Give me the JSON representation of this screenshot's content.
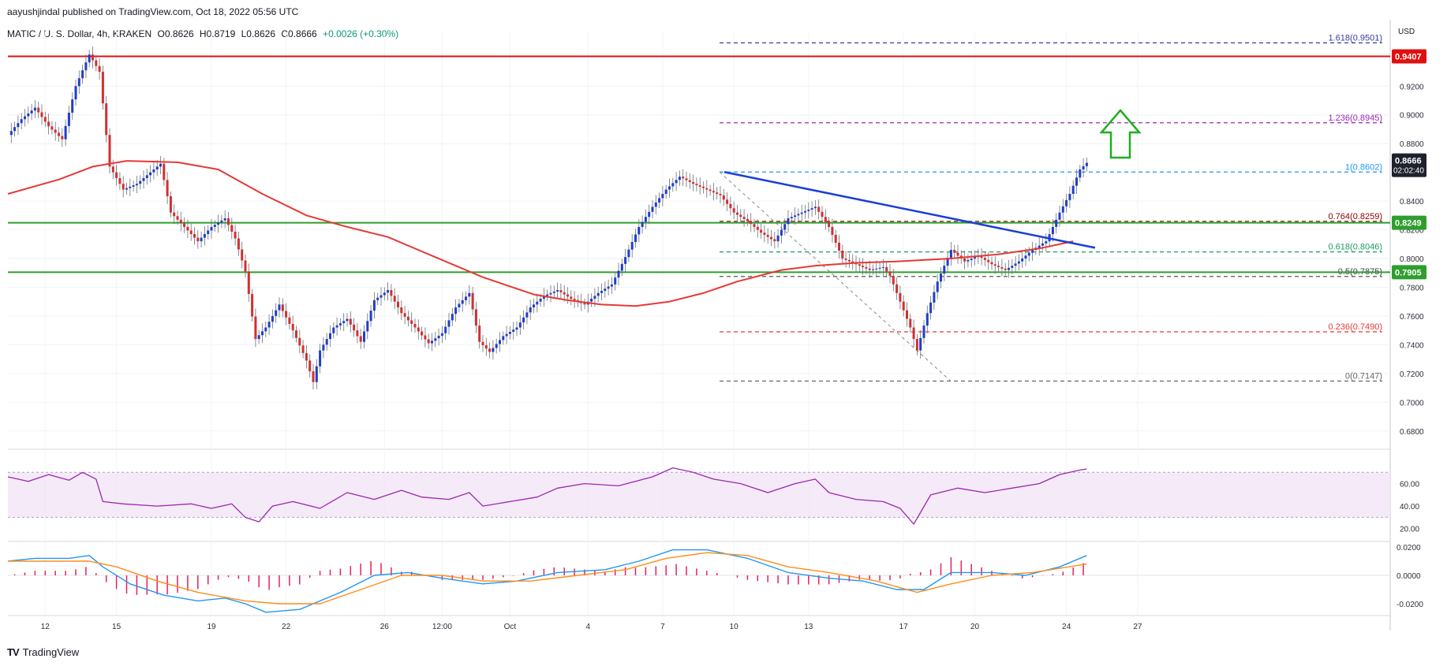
{
  "header": {
    "publisher": "aayushjindal published on TradingView.com, Oct 18, 2022 05:56 UTC",
    "symbol": "MATIC / U. S. Dollar, 4h, KRAKEN",
    "open": "O0.8626",
    "high": "H0.8719",
    "low": "L0.8626",
    "close": "C0.8666",
    "change": "+0.0026 (+0.30%)"
  },
  "brand": {
    "logo_icon": "tradingview-logo-icon",
    "label": "TradingView"
  },
  "colors": {
    "up": "#1f3ec8",
    "down": "#d32f2f",
    "ma": "#e53935",
    "trendline": "#1a3fd6",
    "support": "#2e9e2e",
    "resistance": "#e01010",
    "fib": "#5a5a9a",
    "rsi": "#9c27b0",
    "macd": "#2196f3",
    "signal": "#ff8c1a",
    "hist": "#e91e63",
    "arrow": "#1db01d"
  },
  "chart_data": [
    {
      "type": "candlestick",
      "title": "MATIC / U. S. Dollar, 4h, KRAKEN",
      "ylabel": "USD",
      "ylim": [
        0.67,
        0.958
      ],
      "y_ticks": [
        "0.9200",
        "0.9000",
        "0.8800",
        "0.8400",
        "0.8200",
        "0.8000",
        "0.7800",
        "0.7600",
        "0.7400",
        "0.7200",
        "0.7000",
        "0.6800"
      ],
      "x_ticks": [
        "12",
        "15",
        "19",
        "22",
        "26",
        "12:00",
        "Oct",
        "4",
        "7",
        "10",
        "13",
        "17",
        "20",
        "24",
        "27"
      ],
      "price_path": [
        [
          0,
          0.886
        ],
        [
          4,
          0.897
        ],
        [
          8,
          0.905
        ],
        [
          12,
          0.892
        ],
        [
          16,
          0.883
        ],
        [
          20,
          0.92
        ],
        [
          24,
          0.942
        ],
        [
          27,
          0.93
        ],
        [
          30,
          0.864
        ],
        [
          34,
          0.848
        ],
        [
          38,
          0.852
        ],
        [
          42,
          0.86
        ],
        [
          45,
          0.866
        ],
        [
          48,
          0.832
        ],
        [
          52,
          0.822
        ],
        [
          56,
          0.812
        ],
        [
          60,
          0.822
        ],
        [
          64,
          0.828
        ],
        [
          67,
          0.814
        ],
        [
          70,
          0.791
        ],
        [
          73,
          0.744
        ],
        [
          76,
          0.752
        ],
        [
          80,
          0.768
        ],
        [
          84,
          0.75
        ],
        [
          88,
          0.729
        ],
        [
          90,
          0.714
        ],
        [
          92,
          0.736
        ],
        [
          96,
          0.752
        ],
        [
          100,
          0.758
        ],
        [
          104,
          0.742
        ],
        [
          108,
          0.771
        ],
        [
          112,
          0.778
        ],
        [
          116,
          0.762
        ],
        [
          120,
          0.752
        ],
        [
          124,
          0.741
        ],
        [
          128,
          0.748
        ],
        [
          132,
          0.766
        ],
        [
          136,
          0.776
        ],
        [
          139,
          0.742
        ],
        [
          142,
          0.735
        ],
        [
          146,
          0.746
        ],
        [
          150,
          0.752
        ],
        [
          154,
          0.766
        ],
        [
          158,
          0.774
        ],
        [
          162,
          0.778
        ],
        [
          166,
          0.772
        ],
        [
          170,
          0.768
        ],
        [
          174,
          0.776
        ],
        [
          178,
          0.782
        ],
        [
          182,
          0.801
        ],
        [
          186,
          0.822
        ],
        [
          190,
          0.836
        ],
        [
          194,
          0.848
        ],
        [
          198,
          0.857
        ],
        [
          202,
          0.852
        ],
        [
          206,
          0.848
        ],
        [
          210,
          0.844
        ],
        [
          214,
          0.832
        ],
        [
          218,
          0.826
        ],
        [
          222,
          0.818
        ],
        [
          226,
          0.812
        ],
        [
          230,
          0.828
        ],
        [
          234,
          0.832
        ],
        [
          238,
          0.836
        ],
        [
          242,
          0.822
        ],
        [
          246,
          0.8
        ],
        [
          250,
          0.796
        ],
        [
          254,
          0.792
        ],
        [
          258,
          0.794
        ],
        [
          260,
          0.788
        ],
        [
          263,
          0.77
        ],
        [
          266,
          0.752
        ],
        [
          268,
          0.736
        ],
        [
          271,
          0.762
        ],
        [
          274,
          0.784
        ],
        [
          278,
          0.806
        ],
        [
          282,
          0.798
        ],
        [
          286,
          0.802
        ],
        [
          290,
          0.796
        ],
        [
          294,
          0.792
        ],
        [
          298,
          0.798
        ],
        [
          302,
          0.806
        ],
        [
          306,
          0.812
        ],
        [
          310,
          0.832
        ],
        [
          313,
          0.845
        ],
        [
          316,
          0.862
        ],
        [
          318,
          0.8666
        ]
      ],
      "moving_average": [
        [
          0,
          0.845
        ],
        [
          15,
          0.855
        ],
        [
          25,
          0.864
        ],
        [
          35,
          0.868
        ],
        [
          50,
          0.867
        ],
        [
          62,
          0.862
        ],
        [
          75,
          0.845
        ],
        [
          88,
          0.83
        ],
        [
          100,
          0.822
        ],
        [
          112,
          0.815
        ],
        [
          125,
          0.802
        ],
        [
          140,
          0.787
        ],
        [
          155,
          0.775
        ],
        [
          165,
          0.771
        ],
        [
          175,
          0.768
        ],
        [
          185,
          0.767
        ],
        [
          195,
          0.77
        ],
        [
          205,
          0.776
        ],
        [
          215,
          0.784
        ],
        [
          228,
          0.792
        ],
        [
          238,
          0.795
        ],
        [
          250,
          0.797
        ],
        [
          262,
          0.798
        ],
        [
          278,
          0.8
        ],
        [
          292,
          0.803
        ],
        [
          304,
          0.807
        ],
        [
          314,
          0.812
        ]
      ],
      "rsi_path": [
        [
          0,
          66
        ],
        [
          6,
          62
        ],
        [
          12,
          68
        ],
        [
          18,
          63
        ],
        [
          22,
          70
        ],
        [
          26,
          64
        ],
        [
          28,
          44
        ],
        [
          34,
          42
        ],
        [
          44,
          40
        ],
        [
          54,
          42
        ],
        [
          60,
          38
        ],
        [
          66,
          42
        ],
        [
          70,
          30
        ],
        [
          74,
          26
        ],
        [
          78,
          40
        ],
        [
          84,
          44
        ],
        [
          92,
          38
        ],
        [
          100,
          52
        ],
        [
          108,
          46
        ],
        [
          116,
          54
        ],
        [
          122,
          48
        ],
        [
          130,
          46
        ],
        [
          136,
          52
        ],
        [
          140,
          40
        ],
        [
          148,
          44
        ],
        [
          156,
          48
        ],
        [
          162,
          56
        ],
        [
          170,
          60
        ],
        [
          180,
          58
        ],
        [
          190,
          66
        ],
        [
          196,
          74
        ],
        [
          202,
          70
        ],
        [
          208,
          64
        ],
        [
          216,
          60
        ],
        [
          224,
          52
        ],
        [
          232,
          60
        ],
        [
          238,
          64
        ],
        [
          242,
          52
        ],
        [
          250,
          46
        ],
        [
          258,
          44
        ],
        [
          263,
          38
        ],
        [
          267,
          24
        ],
        [
          272,
          50
        ],
        [
          280,
          56
        ],
        [
          288,
          52
        ],
        [
          296,
          56
        ],
        [
          304,
          60
        ],
        [
          310,
          68
        ],
        [
          316,
          72
        ],
        [
          318,
          73
        ]
      ],
      "macd_path": [
        [
          0,
          0.01
        ],
        [
          8,
          0.012
        ],
        [
          18,
          0.012
        ],
        [
          24,
          0.014
        ],
        [
          28,
          0.006
        ],
        [
          36,
          -0.006
        ],
        [
          46,
          -0.014
        ],
        [
          56,
          -0.018
        ],
        [
          64,
          -0.016
        ],
        [
          70,
          -0.02
        ],
        [
          76,
          -0.026
        ],
        [
          86,
          -0.024
        ],
        [
          98,
          -0.012
        ],
        [
          108,
          0.0
        ],
        [
          118,
          0.002
        ],
        [
          128,
          -0.002
        ],
        [
          140,
          -0.006
        ],
        [
          150,
          -0.004
        ],
        [
          162,
          0.002
        ],
        [
          176,
          0.004
        ],
        [
          186,
          0.01
        ],
        [
          196,
          0.018
        ],
        [
          206,
          0.018
        ],
        [
          218,
          0.012
        ],
        [
          230,
          0.002
        ],
        [
          242,
          -0.002
        ],
        [
          252,
          -0.004
        ],
        [
          262,
          -0.01
        ],
        [
          270,
          -0.01
        ],
        [
          278,
          0.002
        ],
        [
          290,
          0.002
        ],
        [
          300,
          0.0
        ],
        [
          310,
          0.006
        ],
        [
          318,
          0.014
        ]
      ],
      "signal_path": [
        [
          0,
          0.01
        ],
        [
          12,
          0.01
        ],
        [
          24,
          0.01
        ],
        [
          32,
          0.006
        ],
        [
          44,
          -0.004
        ],
        [
          56,
          -0.012
        ],
        [
          70,
          -0.018
        ],
        [
          80,
          -0.02
        ],
        [
          92,
          -0.02
        ],
        [
          104,
          -0.01
        ],
        [
          116,
          0.0
        ],
        [
          128,
          0.0
        ],
        [
          140,
          -0.004
        ],
        [
          154,
          -0.004
        ],
        [
          168,
          0.0
        ],
        [
          182,
          0.004
        ],
        [
          194,
          0.012
        ],
        [
          206,
          0.016
        ],
        [
          218,
          0.014
        ],
        [
          230,
          0.006
        ],
        [
          242,
          0.002
        ],
        [
          256,
          -0.004
        ],
        [
          268,
          -0.012
        ],
        [
          278,
          -0.006
        ],
        [
          290,
          0.0
        ],
        [
          302,
          0.002
        ],
        [
          318,
          0.008
        ]
      ],
      "rsi_ticks": [
        "60.00",
        "40.00",
        "20.00"
      ],
      "macd_ticks": [
        "0.0200",
        "0.0000",
        "-0.0200"
      ]
    }
  ],
  "annotations": {
    "resistance": {
      "value": 0.9407,
      "label": "0.9407"
    },
    "support_upper": {
      "value": 0.8249,
      "label": "0.8249"
    },
    "support_lower": {
      "value": 0.7905,
      "label": "0.7905"
    },
    "last_price": {
      "label": "0.8666",
      "countdown": "02:02:40"
    },
    "fib_levels": [
      {
        "value": 0.9501,
        "label": "1.618(0.9501)",
        "color": "#3a3aa0"
      },
      {
        "value": 0.8945,
        "label": "1.236(0.8945)",
        "color": "#9c27b0"
      },
      {
        "value": 0.8602,
        "label": "1(0.8602)",
        "color": "#2196f3"
      },
      {
        "value": 0.8259,
        "label": "0.764(0.8259)",
        "color": "#8b0000"
      },
      {
        "value": 0.8046,
        "label": "0.618(0.8046)",
        "color": "#1b9e63"
      },
      {
        "value": 0.7875,
        "label": "0.5(0.7875)",
        "color": "#444444"
      },
      {
        "value": 0.749,
        "label": "0.236(0.7490)",
        "color": "#e53935"
      },
      {
        "value": 0.7147,
        "label": "0(0.7147)",
        "color": "#666666"
      }
    ],
    "arrow_icon": "up-arrow-icon"
  }
}
